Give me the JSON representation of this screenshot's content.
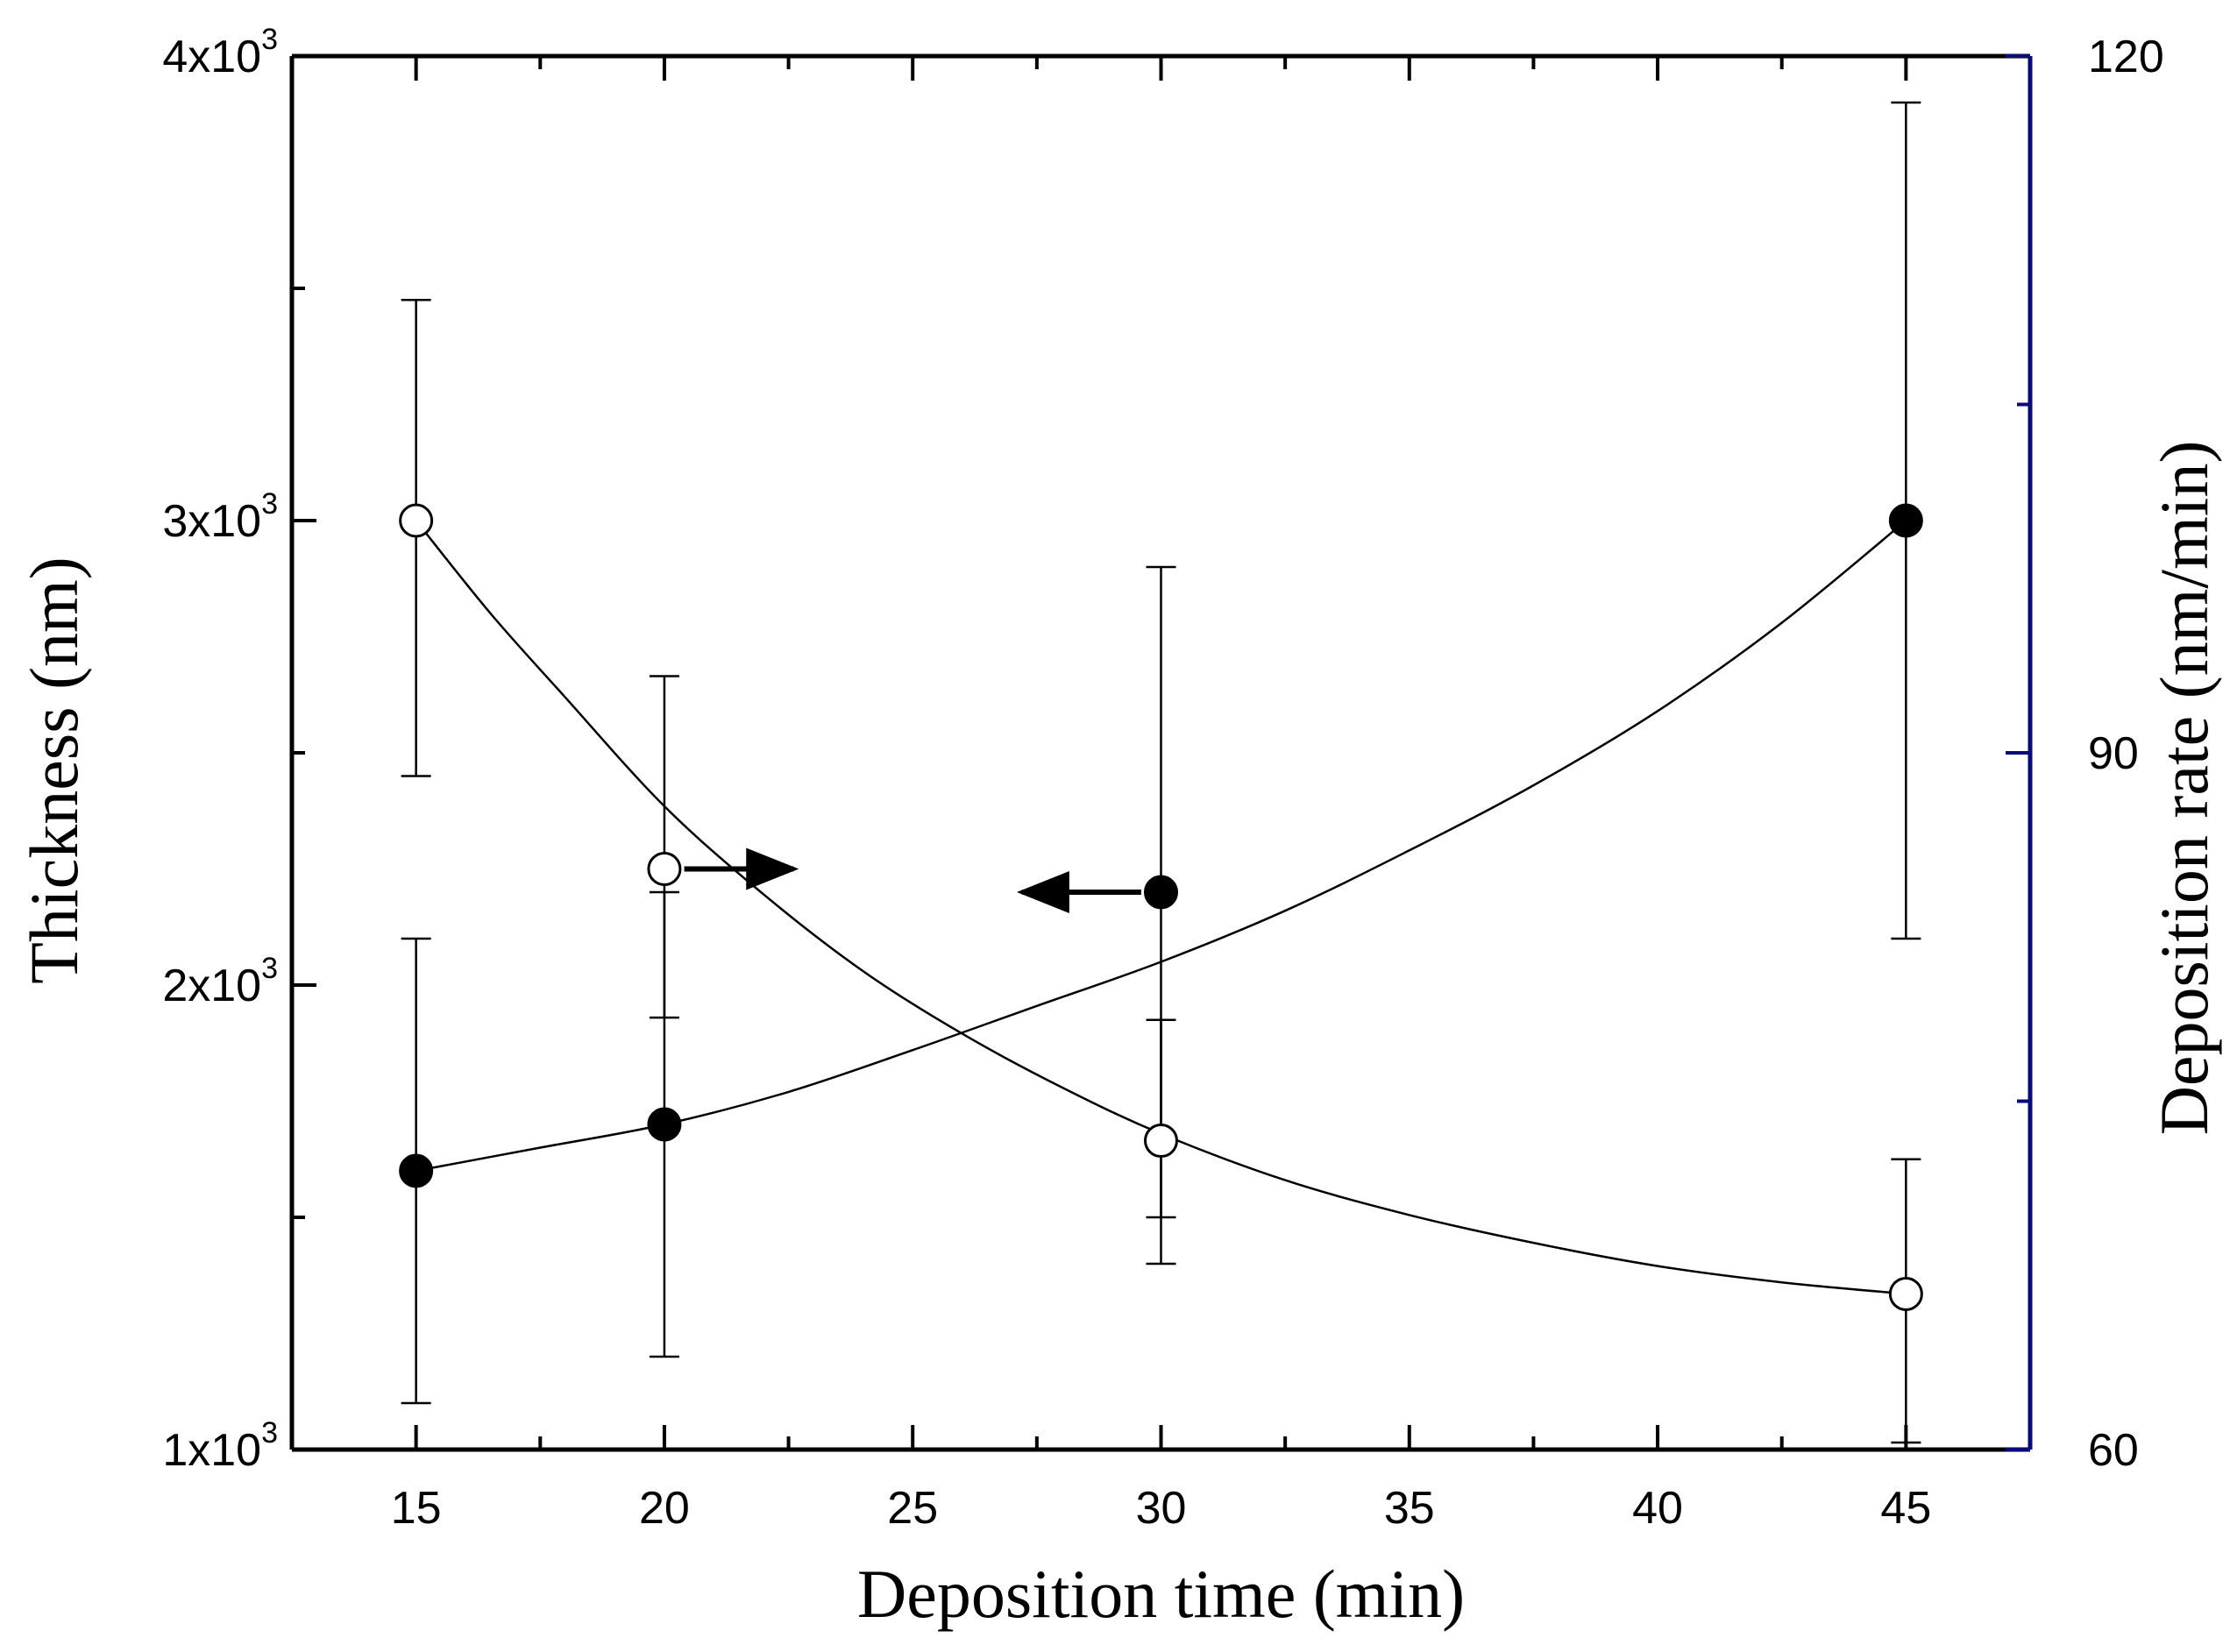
{
  "chart_data": {
    "type": "scatter",
    "xlabel": "Deposition time (min)",
    "ylabel_left": "Thickness (nm)",
    "ylabel_right": "Deposition rate (nm/min)",
    "xlim": [
      12.5,
      47.5
    ],
    "ylim_left": [
      1000,
      4000
    ],
    "ylim_right": [
      60,
      120
    ],
    "x_ticks": [
      15,
      20,
      25,
      30,
      35,
      40,
      45
    ],
    "x_minor_ticks": [
      17.5,
      22.5,
      27.5,
      32.5,
      37.5,
      42.5
    ],
    "y_left_ticks": [
      {
        "value": 1000,
        "mantissa": "1x10",
        "exp": "3"
      },
      {
        "value": 2000,
        "mantissa": "2x10",
        "exp": "3"
      },
      {
        "value": 3000,
        "mantissa": "3x10",
        "exp": "3"
      },
      {
        "value": 4000,
        "mantissa": "4x10",
        "exp": "3"
      }
    ],
    "y_left_minor_ticks": [
      1500,
      2500,
      3500
    ],
    "y_right_ticks": [
      60,
      90,
      120
    ],
    "y_right_minor_ticks": [
      75,
      105
    ],
    "right_axis_color": "#0a0a7a",
    "series": [
      {
        "name": "Thickness",
        "axis": "left",
        "marker": "filled-circle",
        "x": [
          15,
          20,
          30,
          45
        ],
        "y": [
          1600,
          1700,
          2200,
          3000
        ],
        "err_low": [
          1100,
          1200,
          1500,
          2100
        ],
        "err_high": [
          2100,
          2200,
          2900,
          3900
        ],
        "fit": [
          [
            15,
            1600
          ],
          [
            17.5,
            1650
          ],
          [
            20,
            1700
          ],
          [
            22.5,
            1770
          ],
          [
            25,
            1860
          ],
          [
            27.5,
            1955
          ],
          [
            30,
            2050
          ],
          [
            32.5,
            2160
          ],
          [
            35,
            2290
          ],
          [
            37.5,
            2430
          ],
          [
            40,
            2590
          ],
          [
            42.5,
            2780
          ],
          [
            45,
            3000
          ]
        ],
        "arrow_direction": "left",
        "arrow_from": [
          29.6,
          2200
        ],
        "arrow_to": [
          27.2,
          2200
        ]
      },
      {
        "name": "Deposition rate",
        "axis": "right",
        "marker": "open-circle",
        "x": [
          15,
          20,
          30,
          45
        ],
        "y": [
          100,
          85,
          73.3,
          66.7
        ],
        "err_low": [
          89,
          78.6,
          68,
          60.3
        ],
        "err_high": [
          109.5,
          93.3,
          78.5,
          72.5
        ],
        "fit": [
          [
            15,
            100
          ],
          [
            16.5,
            96
          ],
          [
            18,
            92.4
          ],
          [
            20,
            87.7
          ],
          [
            22,
            83.9
          ],
          [
            24,
            80.6
          ],
          [
            26,
            77.9
          ],
          [
            28,
            75.6
          ],
          [
            30,
            73.6
          ],
          [
            32.5,
            71.6
          ],
          [
            35,
            70.1
          ],
          [
            37.5,
            68.9
          ],
          [
            40,
            67.9
          ],
          [
            42.5,
            67.2
          ],
          [
            45,
            66.7
          ]
        ],
        "arrow_direction": "right",
        "arrow_from": [
          20.4,
          85
        ],
        "arrow_to": [
          22.6,
          85
        ]
      }
    ]
  }
}
